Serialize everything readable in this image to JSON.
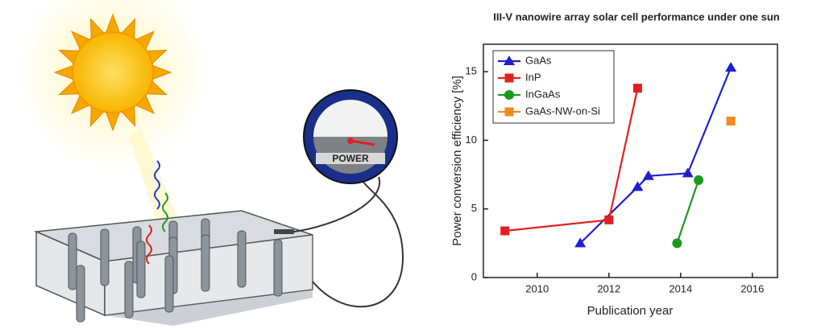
{
  "illustration": {
    "meter_label": "POWER"
  },
  "chart_data": {
    "type": "line",
    "title": "III-V nanowire array solar cell performance under one sun",
    "x_label": "Publication year",
    "y_label": "Power conversion efficiency [%]",
    "xlim": [
      2008.5,
      2016.7
    ],
    "xticks": [
      2010,
      2012,
      2014,
      2016
    ],
    "ylim": [
      0,
      17
    ],
    "yticks": [
      0,
      5,
      10,
      15
    ],
    "legend": "upper left",
    "series": [
      {
        "name": "GaAs",
        "color": "#1f1fd0",
        "marker": "triangle",
        "connect": true,
        "x": [
          2011.2,
          2012.8,
          2013.1,
          2014.2,
          2015.4
        ],
        "values": [
          2.5,
          6.6,
          7.4,
          7.6,
          15.3
        ]
      },
      {
        "name": "InP",
        "color": "#e02020",
        "marker": "square",
        "connect": true,
        "x": [
          2009.1,
          2012.0,
          2012.8
        ],
        "values": [
          3.4,
          4.2,
          13.8
        ]
      },
      {
        "name": "InGaAs",
        "color": "#1a9a1a",
        "marker": "circle",
        "connect": true,
        "x": [
          2013.9,
          2014.5
        ],
        "values": [
          2.5,
          7.1
        ]
      },
      {
        "name": "GaAs-NW-on-Si",
        "color": "#f08a20",
        "marker": "square",
        "connect": false,
        "x": [
          2015.4
        ],
        "values": [
          11.4
        ]
      }
    ]
  }
}
